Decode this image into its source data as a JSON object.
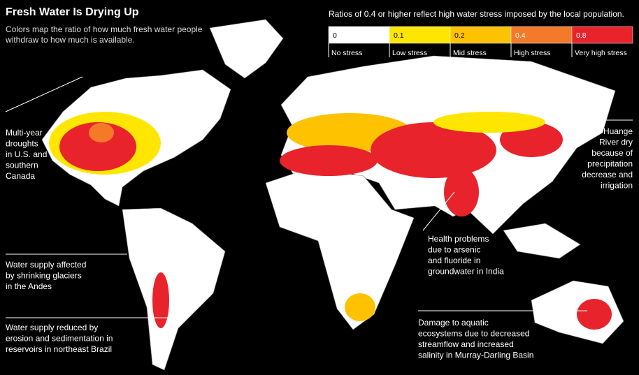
{
  "title": "Fresh Water Is Drying Up",
  "subtitle": [
    "Colors map the ratio of how much fresh water people",
    "withdraw to how much is available."
  ],
  "legend": {
    "caption": "Ratios of 0.4 or higher reflect high water stress imposed by the local population.",
    "items": [
      {
        "value": "0",
        "label": "No stress",
        "color": "#ffffff"
      },
      {
        "value": "0.1",
        "label": "Low stress",
        "color": "#ffe600"
      },
      {
        "value": "0.2",
        "label": "Mid stress",
        "color": "#ffc200"
      },
      {
        "value": "0.4",
        "label": "High stress",
        "color": "#f47a2a"
      },
      {
        "value": "0.8",
        "label": "Very high stress",
        "color": "#e8232b"
      }
    ]
  },
  "annotations": [
    {
      "lines": [
        "Multi-year",
        "droughts",
        "in U.S. and",
        "southern",
        "Canada"
      ]
    },
    {
      "lines": [
        "Water supply affected",
        "by shrinking glaciers",
        "in the Andes"
      ]
    },
    {
      "lines": [
        "Water supply reduced by",
        "erosion and sedimentation in",
        "reservoirs in northeast Brazil"
      ]
    },
    {
      "lines": [
        "Health problems",
        "due to arsenic",
        "and fluoride in",
        "groundwater in India"
      ]
    },
    {
      "lines": [
        "Huange",
        "River dry",
        "because of",
        "precipitation",
        "decrease and",
        "irrigation"
      ]
    },
    {
      "lines": [
        "Damage to aquatic",
        "ecosystems due to decreased",
        "streamflow and increased",
        "salinity in Murray-Darling Basin"
      ]
    }
  ]
}
